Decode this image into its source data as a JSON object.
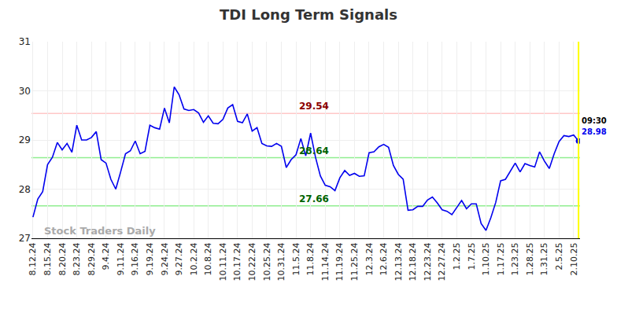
{
  "chart_data": {
    "type": "line",
    "title": "TDI Long Term Signals",
    "color": "#0000ee",
    "grid": true,
    "categories": [
      "8.12.24",
      null,
      null,
      "8.15.24",
      null,
      null,
      "8.20.24",
      null,
      null,
      "8.23.24",
      null,
      null,
      "8.29.24",
      null,
      null,
      "9.4.24",
      null,
      null,
      "9.11.24",
      null,
      null,
      "9.16.24",
      null,
      null,
      "9.19.24",
      null,
      null,
      "9.24.24",
      null,
      null,
      "9.27.24",
      null,
      null,
      "10.2.24",
      null,
      null,
      "10.8.24",
      null,
      null,
      "10.11.24",
      null,
      null,
      "10.17.24",
      null,
      null,
      "10.22.24",
      null,
      null,
      "10.25.24",
      null,
      null,
      "10.31.24",
      null,
      null,
      "11.5.24",
      null,
      null,
      "11.8.24",
      null,
      null,
      "11.14.24",
      null,
      null,
      "11.19.24",
      null,
      null,
      "11.25.24",
      null,
      null,
      "12.3.24",
      null,
      null,
      "12.6.24",
      null,
      null,
      "12.13.24",
      null,
      null,
      "12.18.24",
      null,
      null,
      "12.23.24",
      null,
      null,
      "12.27.24",
      null,
      null,
      "1.2.25",
      null,
      null,
      "1.7.25",
      null,
      null,
      "1.10.25",
      null,
      null,
      "1.17.25",
      null,
      null,
      "1.23.25",
      null,
      null,
      "1.28.25",
      null,
      null,
      "1.31.25",
      null,
      null,
      "2.5.25",
      null,
      null,
      "2.10.25",
      null
    ],
    "values": [
      27.43,
      27.8,
      27.95,
      28.5,
      28.65,
      28.95,
      28.8,
      28.93,
      28.75,
      29.3,
      29.0,
      29.0,
      29.05,
      29.17,
      28.6,
      28.53,
      28.2,
      28.0,
      28.35,
      28.72,
      28.78,
      28.98,
      28.72,
      28.77,
      29.3,
      29.25,
      29.22,
      29.65,
      29.35,
      30.08,
      29.92,
      29.63,
      29.6,
      29.62,
      29.55,
      29.36,
      29.49,
      29.34,
      29.33,
      29.42,
      29.65,
      29.72,
      29.38,
      29.35,
      29.53,
      29.18,
      29.25,
      28.93,
      28.88,
      28.87,
      28.93,
      28.87,
      28.44,
      28.6,
      28.7,
      29.03,
      28.68,
      29.14,
      28.65,
      28.27,
      28.08,
      28.05,
      27.97,
      28.23,
      28.38,
      28.28,
      28.32,
      28.26,
      28.27,
      28.74,
      28.76,
      28.86,
      28.91,
      28.85,
      28.48,
      28.3,
      28.2,
      27.57,
      27.58,
      27.65,
      27.65,
      27.78,
      27.84,
      27.72,
      27.58,
      27.55,
      27.48,
      27.62,
      27.77,
      27.6,
      27.7,
      27.7,
      27.3,
      27.16,
      27.42,
      27.73,
      28.17,
      28.2,
      28.37,
      28.53,
      28.35,
      28.52,
      28.48,
      28.45,
      28.76,
      28.57,
      28.42,
      28.72,
      28.97,
      29.09,
      29.07,
      29.1,
      28.98
    ],
    "xlim": [
      -0.3,
      112.3
    ],
    "ylim": [
      27,
      31
    ],
    "yticks": [
      27,
      28,
      29,
      30,
      31
    ],
    "reference_lines": [
      {
        "value": 29.54,
        "label": "29.54",
        "color": "#ffc8c8",
        "label_color": "#8b0000"
      },
      {
        "value": 28.64,
        "label": "28.64",
        "color": "#90ee90",
        "label_color": "#006400"
      },
      {
        "value": 27.66,
        "label": "27.66",
        "color": "#90ee90",
        "label_color": "#006400"
      }
    ],
    "end_marker_color": "#ffff00",
    "end_time": "09:30",
    "end_label": "28.98",
    "watermark": "Stock Traders Daily"
  }
}
